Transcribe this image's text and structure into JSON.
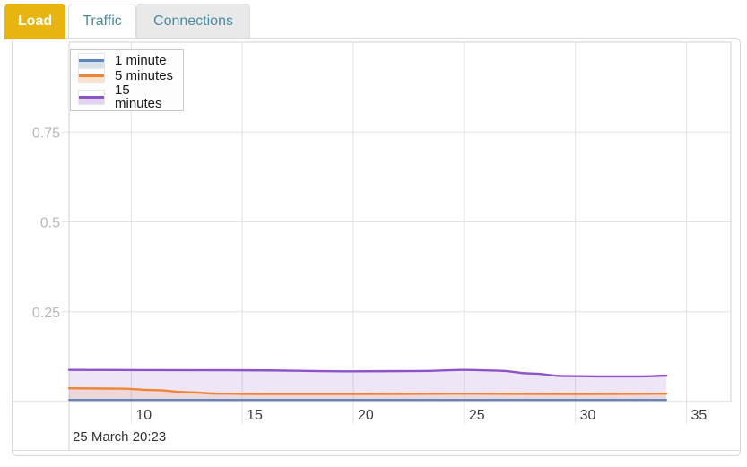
{
  "tabs": [
    {
      "label": "Load",
      "active": true
    },
    {
      "label": "Traffic",
      "active": false
    },
    {
      "label": "Connections",
      "active": false
    }
  ],
  "colors": {
    "active_tab": "#e8b40f",
    "tab_text": "#4b8ba0",
    "grid": "#e3e3e3",
    "frame": "#d2d2d2",
    "y_tick_label": "#b8b8b8",
    "x_tick_label": "#3d3d3d"
  },
  "chart_data": {
    "type": "area",
    "title": "Load",
    "x_ticks": [
      10,
      15,
      20,
      25,
      30,
      35
    ],
    "y_ticks": [
      0.25,
      0.5,
      0.75
    ],
    "xlim": [
      7.2,
      37.0
    ],
    "ylim": [
      0,
      1.0
    ],
    "grid": true,
    "legend_position": "top-left",
    "x_axis_note": "25 March 20:23",
    "series": [
      {
        "name": "1 minute",
        "color": "#5e87bb",
        "points": [
          [
            7.2,
            0.005
          ],
          [
            15,
            0.005
          ],
          [
            25,
            0.005
          ],
          [
            34.1,
            0.005
          ]
        ]
      },
      {
        "name": "5 minutes",
        "color": "#ee8535",
        "points": [
          [
            7.2,
            0.037
          ],
          [
            9.5,
            0.036
          ],
          [
            11,
            0.032
          ],
          [
            12.5,
            0.026
          ],
          [
            14,
            0.022
          ],
          [
            16,
            0.021
          ],
          [
            20,
            0.021
          ],
          [
            25,
            0.022
          ],
          [
            30,
            0.021
          ],
          [
            34.1,
            0.022
          ]
        ]
      },
      {
        "name": "15 minutes",
        "color": "#8d53c7",
        "points": [
          [
            7.2,
            0.088
          ],
          [
            15,
            0.087
          ],
          [
            20,
            0.084
          ],
          [
            23,
            0.085
          ],
          [
            25,
            0.088
          ],
          [
            26.5,
            0.086
          ],
          [
            28,
            0.078
          ],
          [
            29.5,
            0.071
          ],
          [
            31,
            0.07
          ],
          [
            33,
            0.07
          ],
          [
            34.1,
            0.072
          ]
        ]
      }
    ]
  }
}
